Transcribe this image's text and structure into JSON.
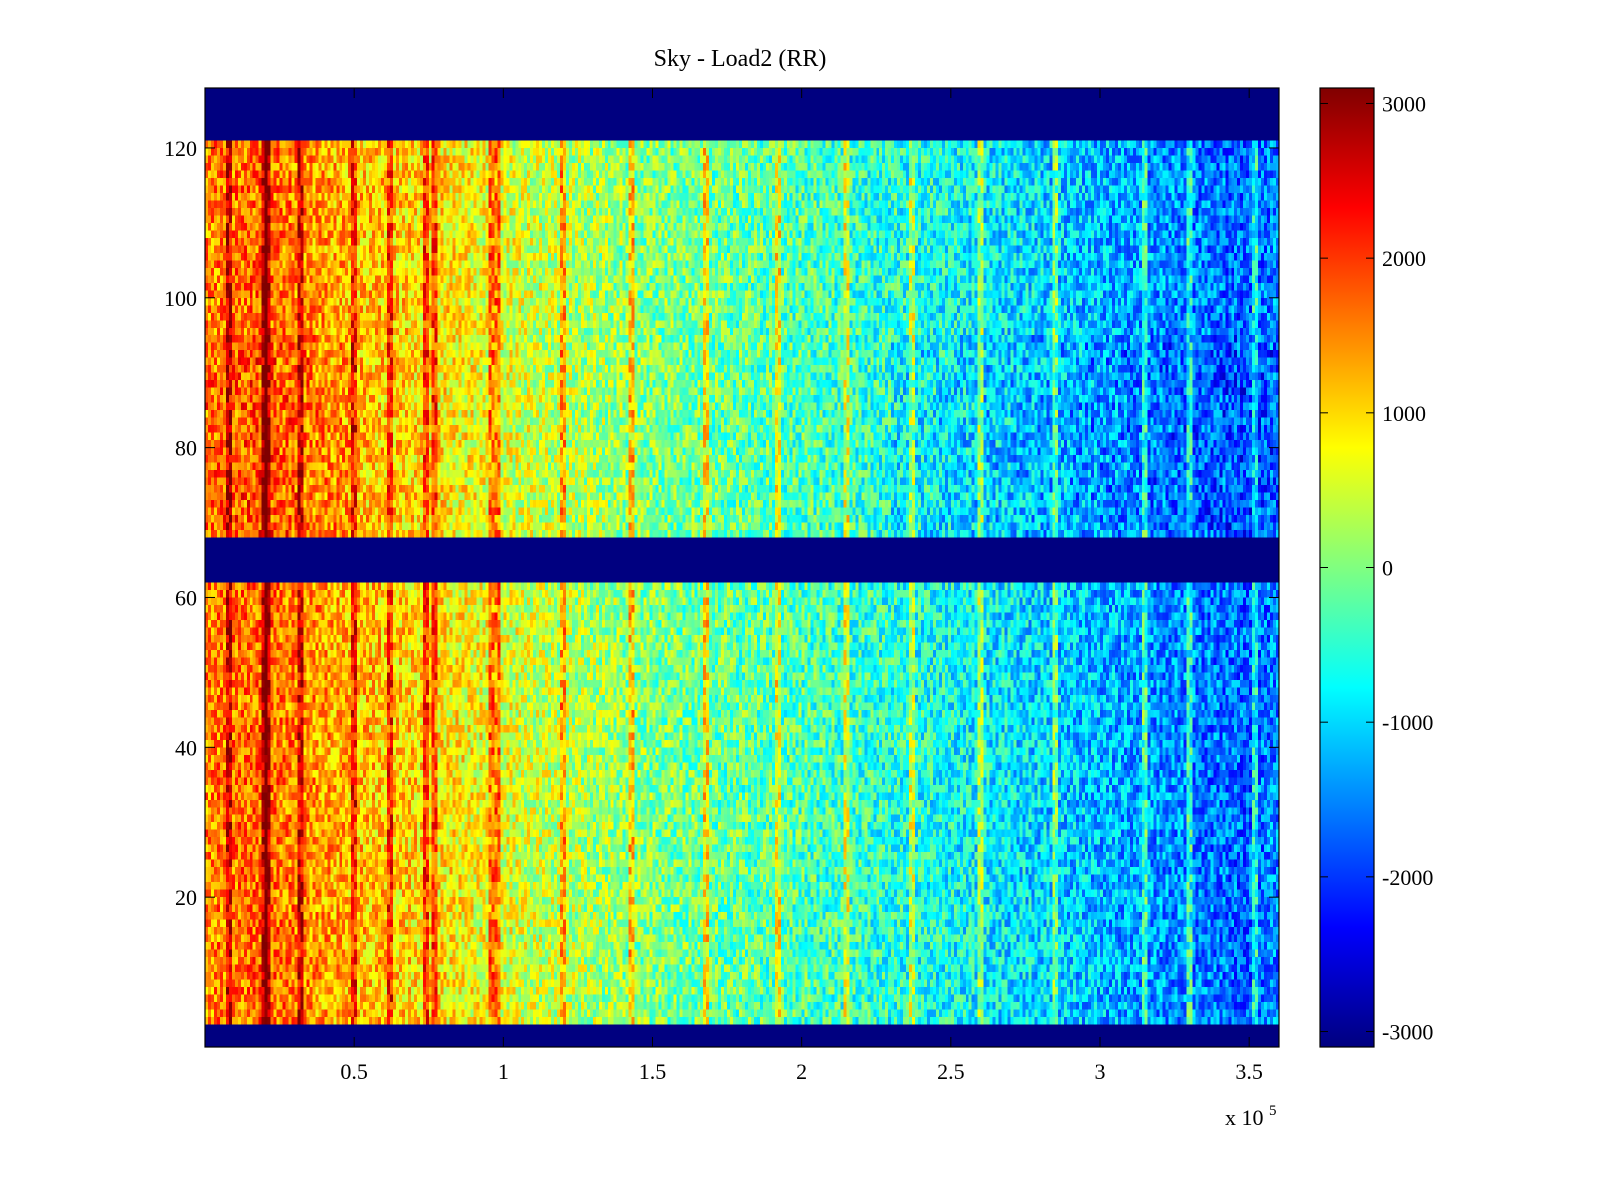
{
  "chart_data": {
    "type": "heatmap",
    "title": "Sky - Load2 (RR)",
    "xlabel": "",
    "ylabel": "",
    "x_multiplier_label": {
      "prefix": "x 10",
      "exponent": "5"
    },
    "xlim": [
      0,
      3.6
    ],
    "ylim": [
      0,
      128
    ],
    "x_ticks": [
      0.5,
      1,
      1.5,
      2,
      2.5,
      3,
      3.5
    ],
    "x_tick_labels": [
      "0.5",
      "1",
      "1.5",
      "2",
      "2.5",
      "3",
      "3.5"
    ],
    "y_ticks": [
      20,
      40,
      60,
      80,
      100,
      120
    ],
    "y_tick_labels": [
      "20",
      "40",
      "60",
      "80",
      "100",
      "120"
    ],
    "colormap": "jet",
    "clim": [
      -3100,
      3100
    ],
    "colorbar": {
      "ticks": [
        3000,
        2000,
        1000,
        0,
        -1000,
        -2000,
        -3000
      ],
      "tick_labels": [
        "3000",
        "2000",
        "1000",
        "0",
        "-1000",
        "-2000",
        "-3000"
      ]
    },
    "masked_rows": [
      {
        "from": 0,
        "to": 3,
        "value": -3100
      },
      {
        "from": 62,
        "to": 68,
        "value": -3100
      },
      {
        "from": 121,
        "to": 128,
        "value": -3100
      }
    ],
    "trend": {
      "x": [
        0,
        0.2,
        0.5,
        0.8,
        1.0,
        1.5,
        2.0,
        2.5,
        3.0,
        3.5,
        3.6
      ],
      "value": [
        1500,
        1700,
        1200,
        900,
        600,
        0,
        -300,
        -700,
        -1200,
        -1700,
        -1500
      ]
    },
    "bright_stripes_x": [
      0.08,
      0.2,
      0.21,
      0.32,
      0.5,
      0.62,
      0.74,
      0.77,
      0.96,
      0.98,
      1.2,
      1.43,
      1.68,
      1.92,
      2.15,
      2.37,
      2.6,
      2.85,
      3.15,
      3.3,
      3.52
    ]
  }
}
